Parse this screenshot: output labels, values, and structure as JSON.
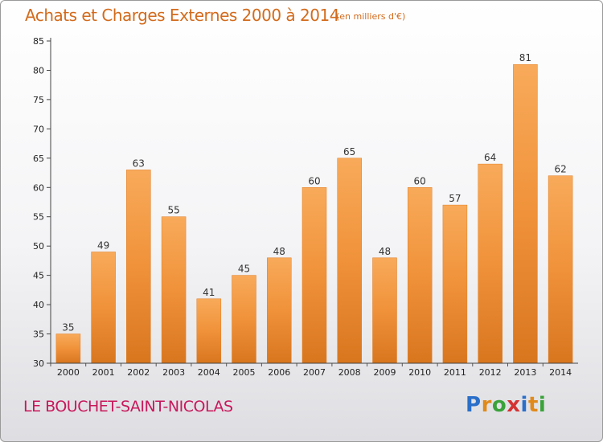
{
  "chart_data": {
    "type": "bar",
    "title": "Achats et Charges Externes 2000 à 2014",
    "subtitle": "(en milliers d'€)",
    "categories": [
      "2000",
      "2001",
      "2002",
      "2003",
      "2004",
      "2005",
      "2006",
      "2007",
      "2008",
      "2009",
      "2010",
      "2011",
      "2012",
      "2013",
      "2014"
    ],
    "values": [
      35,
      49,
      63,
      55,
      41,
      45,
      48,
      60,
      65,
      48,
      60,
      57,
      64,
      81,
      62
    ],
    "ylim": [
      30,
      85
    ],
    "yticks": [
      30,
      35,
      40,
      45,
      50,
      55,
      60,
      65,
      70,
      75,
      80,
      85
    ],
    "grid": false,
    "bar_color": "#f0923a",
    "bar_color_light": "#f8aa5a",
    "bar_color_dark": "#d8761e"
  },
  "footer": {
    "place": "LE BOUCHET-SAINT-NICOLAS"
  },
  "logo": {
    "letters": [
      "P",
      "r",
      "o",
      "x",
      "i",
      "t",
      "i"
    ],
    "colors": [
      "#2a6fc9",
      "#e08a1c",
      "#3aa23a",
      "#d43232",
      "#2a6fc9",
      "#e08a1c",
      "#3aa23a"
    ]
  }
}
